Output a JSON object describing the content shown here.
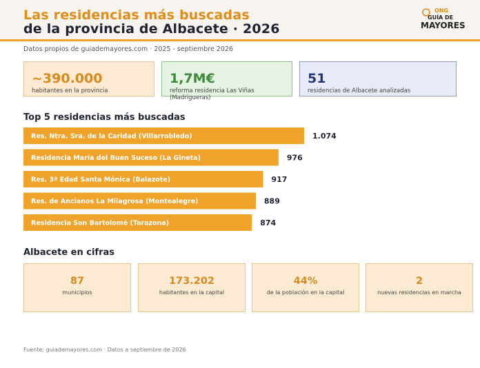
{
  "header": {
    "title_line1": "Las residencias más buscadas",
    "title_line2": "de la provincia de Albacete · 2026",
    "logo": {
      "ong": "ONG",
      "guia": "GUÍA DE",
      "mayores": "MAYORES"
    }
  },
  "subtitle": "Datos propios de guiademayores.com · 2025 - septiembre 2026",
  "kpis": [
    {
      "value": "~390.000",
      "label": "habitantes en la provincia",
      "color": "#d98a1c"
    },
    {
      "value": "1,7M€",
      "label": "reforma residencia Las Viñas (Madrigueras)",
      "color": "#3c8a3a"
    },
    {
      "value": "51",
      "label": "residencias de Albacete analizadas",
      "color": "#27387a"
    }
  ],
  "top5": {
    "section_title": "Top 5 residencias más buscadas",
    "chart_data": {
      "type": "bar",
      "orientation": "horizontal",
      "categories": [
        "Res. Ntra. Sra. de la Caridad (Villarrobledo)",
        "Residencia María del Buen Suceso (La Gineta)",
        "Res. 3ª Edad Santa Mónica (Balazote)",
        "Res. de Ancianos La Milagrosa (Montealegre)",
        "Residencia San Bartolomé (Tarazona)"
      ],
      "values": [
        1074,
        976,
        917,
        889,
        874
      ],
      "value_labels": [
        "1.074",
        "976",
        "917",
        "889",
        "874"
      ],
      "bar_color": "#f0a32a",
      "grid": false
    }
  },
  "cifras": {
    "section_title": "Albacete en cifras",
    "items": [
      {
        "value": "87",
        "label": "municipios"
      },
      {
        "value": "173.202",
        "label": "habitantes en la capital"
      },
      {
        "value": "44%",
        "label": "de la población en la capital"
      },
      {
        "value": "2",
        "label": "nuevas residencias en marcha"
      }
    ]
  },
  "footer": "Fuente: guiademayores.com · Datos a septiembre de 2026",
  "colors": {
    "accent": "#f0a32a",
    "dark": "#1f2233"
  }
}
